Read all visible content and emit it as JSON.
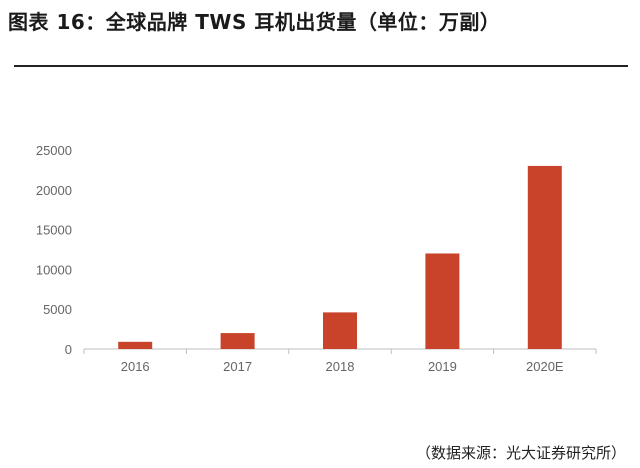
{
  "header": {
    "title": "图表 16：全球品牌 TWS 耳机出货量（单位：万副）"
  },
  "footer": {
    "source": "（数据来源：光大证券研究所）"
  },
  "chart_data": {
    "type": "bar",
    "title": "全球品牌 TWS 耳机出货量（单位：万副）",
    "categories": [
      "2016",
      "2017",
      "2018",
      "2019",
      "2020E"
    ],
    "series": [
      {
        "name": "",
        "values": [
          900,
          2000,
          4600,
          12000,
          23000
        ]
      }
    ],
    "ylim": [
      0,
      25000
    ],
    "yticks": [
      0,
      5000,
      10000,
      15000,
      20000,
      25000
    ],
    "xlabel": "",
    "ylabel": "",
    "grid": false,
    "legend": "none",
    "bar_color": "#c8432a",
    "axis_color": "#bfbfbf"
  }
}
